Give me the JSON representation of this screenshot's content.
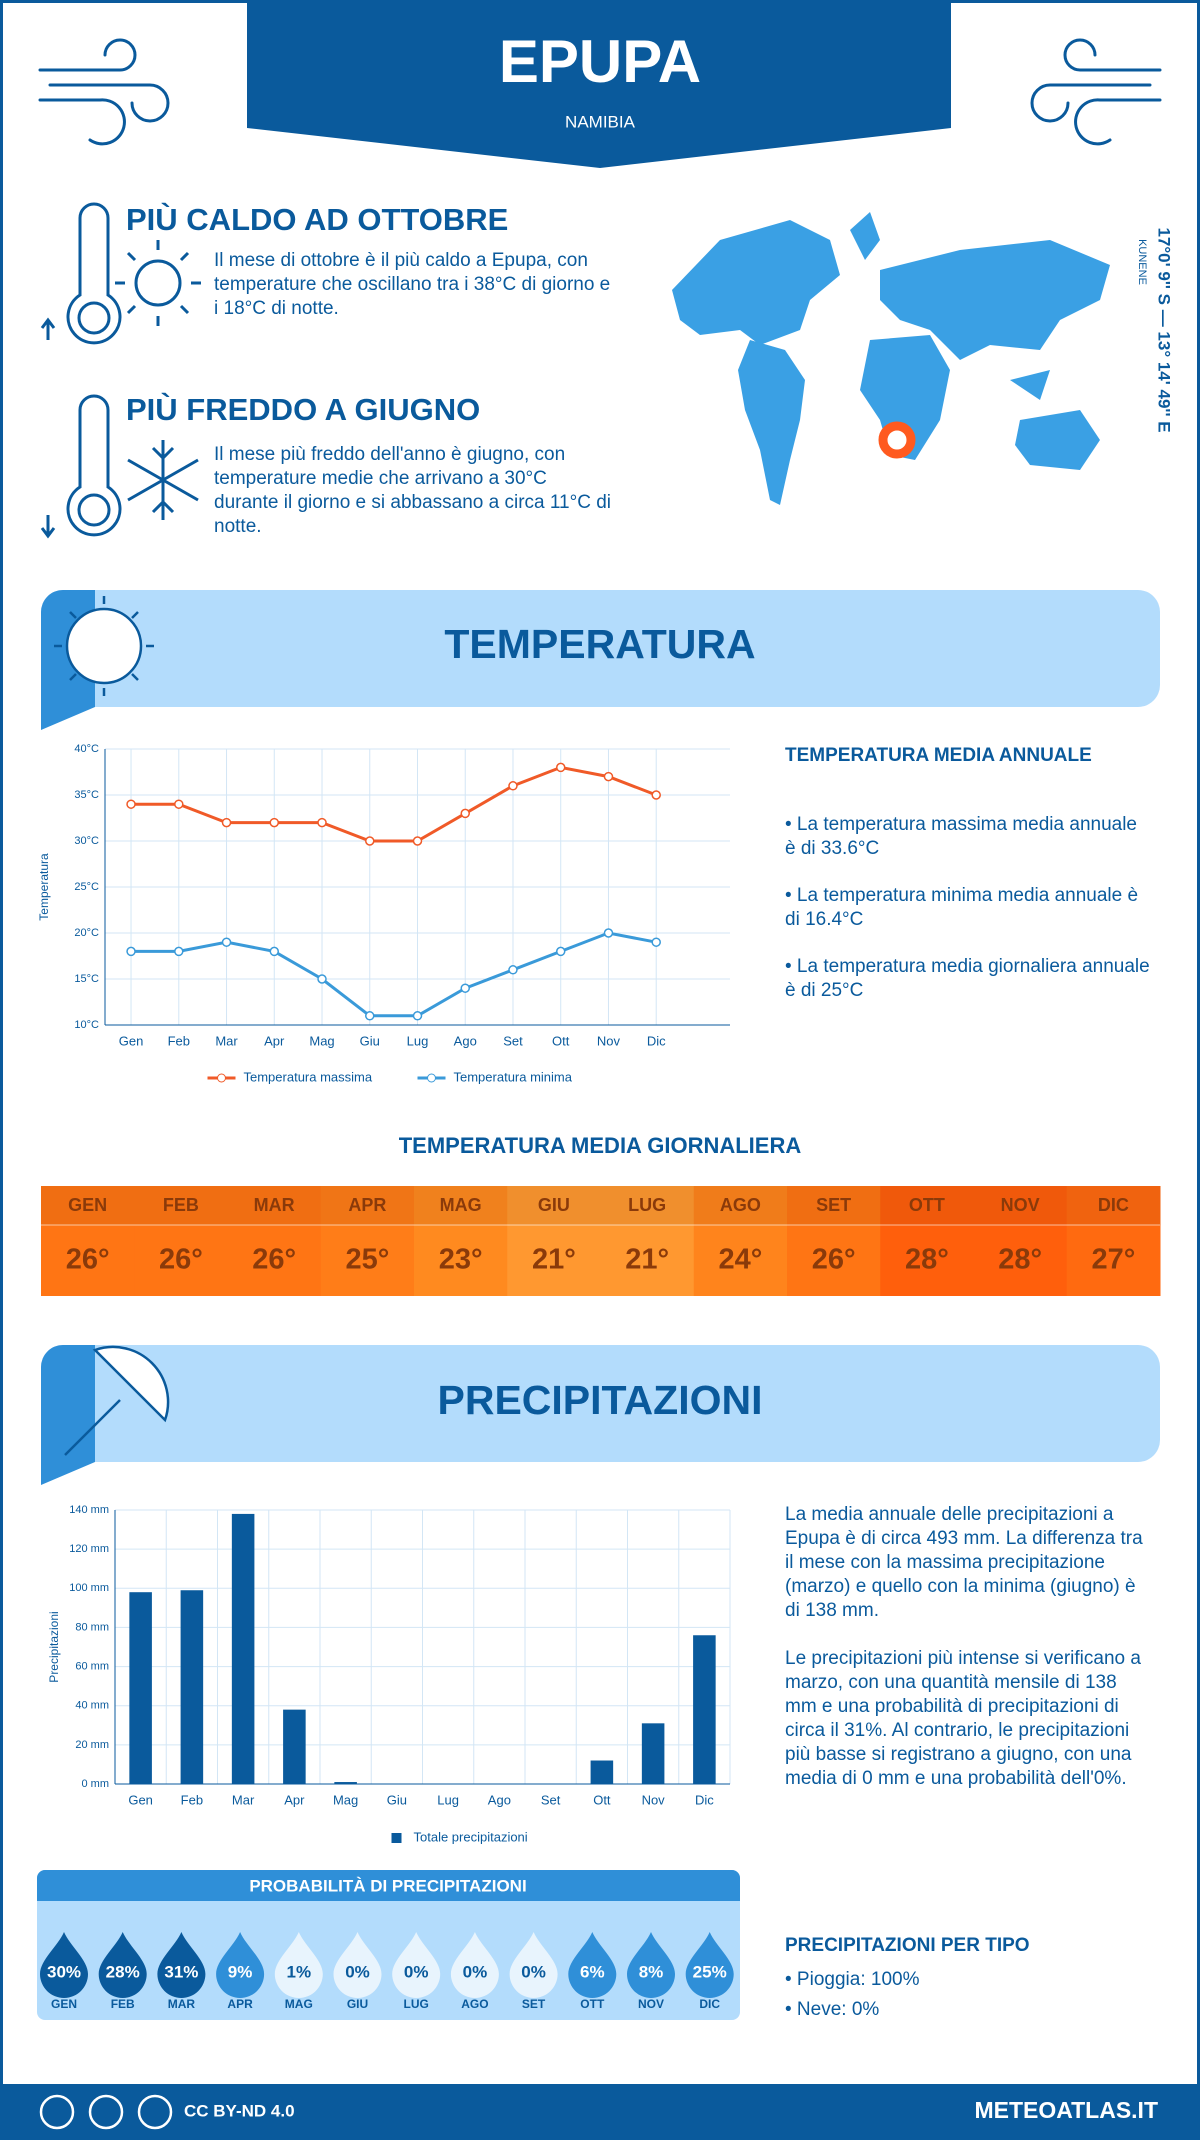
{
  "header": {
    "title": "EPUPA",
    "subtitle": "NAMIBIA"
  },
  "hottest": {
    "title": "PIÙ CALDO AD OTTOBRE",
    "text": "Il mese di ottobre è il più caldo a Epupa, con temperature che oscillano tra i 38°C di giorno e i 18°C di notte."
  },
  "coldest": {
    "title": "PIÙ FREDDO A GIUGNO",
    "text": "Il mese più freddo dell'anno è giugno, con temperature medie che arrivano a 30°C durante il giorno e si abbassano a circa 11°C di notte."
  },
  "location": {
    "coordinates": "17°0' 9'' S — 13° 14' 49'' E",
    "region": "KUNENE"
  },
  "temperature_section": {
    "title": "TEMPERATURA",
    "summary_title": "TEMPERATURA MEDIA ANNUALE",
    "bullets": [
      "• La temperatura massima media annuale è di 33.6°C",
      "• La temperatura minima media annuale è di 16.4°C",
      "• La temperatura media giornaliera annuale è di 25°C"
    ]
  },
  "daily_mean": {
    "title": "TEMPERATURA MEDIA GIORNALIERA",
    "months": [
      "GEN",
      "FEB",
      "MAR",
      "APR",
      "MAG",
      "GIU",
      "LUG",
      "AGO",
      "SET",
      "OTT",
      "NOV",
      "DIC"
    ],
    "values": [
      "26°",
      "26°",
      "26°",
      "25°",
      "23°",
      "21°",
      "21°",
      "24°",
      "26°",
      "28°",
      "28°",
      "27°"
    ],
    "colors": [
      "#ff7514",
      "#ff7514",
      "#ff7514",
      "#ff7d18",
      "#ff8a1f",
      "#ff9830",
      "#ff9830",
      "#ff841c",
      "#ff7514",
      "#ff5f0c",
      "#ff5f0c",
      "#ff6a10"
    ]
  },
  "precipitation_section": {
    "title": "PRECIPITAZIONI",
    "paragraphs": [
      "La media annuale delle precipitazioni a Epupa è di circa 493 mm. La differenza tra il mese con la massima precipitazione (marzo) e quello con la minima (giugno) è di 138 mm.",
      "Le precipitazioni più intense si verificano a marzo, con una quantità mensile di 138 mm e una probabilità di precipitazioni di circa il 31%. Al contrario, le precipitazioni più basse si registrano a giugno, con una media di 0 mm e una probabilità dell'0%."
    ],
    "type_title": "PRECIPITAZIONI PER TIPO",
    "types": [
      "• Pioggia: 100%",
      "• Neve: 0%"
    ]
  },
  "probability": {
    "title": "PROBABILITÀ DI PRECIPITAZIONI",
    "months": [
      "GEN",
      "FEB",
      "MAR",
      "APR",
      "MAG",
      "GIU",
      "LUG",
      "AGO",
      "SET",
      "OTT",
      "NOV",
      "DIC"
    ],
    "values": [
      "30%",
      "28%",
      "31%",
      "9%",
      "1%",
      "0%",
      "0%",
      "0%",
      "0%",
      "6%",
      "8%",
      "25%"
    ],
    "colors": [
      "#0a5a9c",
      "#0a5a9c",
      "#0a5a9c",
      "#2f8fd8",
      "#e8f4fd",
      "#e8f4fd",
      "#e8f4fd",
      "#e8f4fd",
      "#e8f4fd",
      "#2f8fd8",
      "#2f8fd8",
      "#2f8fd8"
    ]
  },
  "footer": {
    "license": "CC BY-ND 4.0",
    "site": "METEOATLAS.IT"
  },
  "chart_data": [
    {
      "type": "line",
      "y_label": "Temperatura",
      "categories": [
        "Gen",
        "Feb",
        "Mar",
        "Apr",
        "Mag",
        "Giu",
        "Lug",
        "Ago",
        "Set",
        "Ott",
        "Nov",
        "Dic"
      ],
      "series": [
        {
          "name": "Temperatura massima",
          "color": "#f05a28",
          "values": [
            34,
            34,
            32,
            32,
            32,
            30,
            30,
            33,
            36,
            38,
            37,
            35
          ]
        },
        {
          "name": "Temperatura minima",
          "color": "#3a9ad9",
          "values": [
            18,
            18,
            19,
            18,
            15,
            11,
            11,
            14,
            16,
            18,
            20,
            19
          ]
        }
      ],
      "ylim": [
        10,
        40
      ],
      "yticks": [
        {
          "value": 10,
          "label": "10°C"
        },
        {
          "value": 15,
          "label": "15°C"
        },
        {
          "value": 20,
          "label": "20°C"
        },
        {
          "value": 25,
          "label": "25°C"
        },
        {
          "value": 30,
          "label": "30°C"
        },
        {
          "value": 35,
          "label": "35°C"
        },
        {
          "value": 40,
          "label": "40°C"
        }
      ],
      "grid": true,
      "legend": "bottom"
    },
    {
      "type": "bar",
      "y_label": "Precipitazioni",
      "categories": [
        "Gen",
        "Feb",
        "Mar",
        "Apr",
        "Mag",
        "Giu",
        "Lug",
        "Ago",
        "Set",
        "Ott",
        "Nov",
        "Dic"
      ],
      "series": [
        {
          "name": "Totale precipitazioni",
          "color": "#0a5a9c",
          "values": [
            98,
            99,
            138,
            38,
            1,
            0,
            0,
            0,
            0,
            12,
            31,
            76
          ]
        }
      ],
      "ylim": [
        0,
        140
      ],
      "yticks": [
        {
          "value": 0,
          "label": "0 mm"
        },
        {
          "value": 20,
          "label": "20 mm"
        },
        {
          "value": 40,
          "label": "40 mm"
        },
        {
          "value": 60,
          "label": "60 mm"
        },
        {
          "value": 80,
          "label": "80 mm"
        },
        {
          "value": 100,
          "label": "100 mm"
        },
        {
          "value": 120,
          "label": "120 mm"
        },
        {
          "value": 140,
          "label": "140 mm"
        }
      ],
      "grid": true,
      "legend": "bottom"
    }
  ]
}
